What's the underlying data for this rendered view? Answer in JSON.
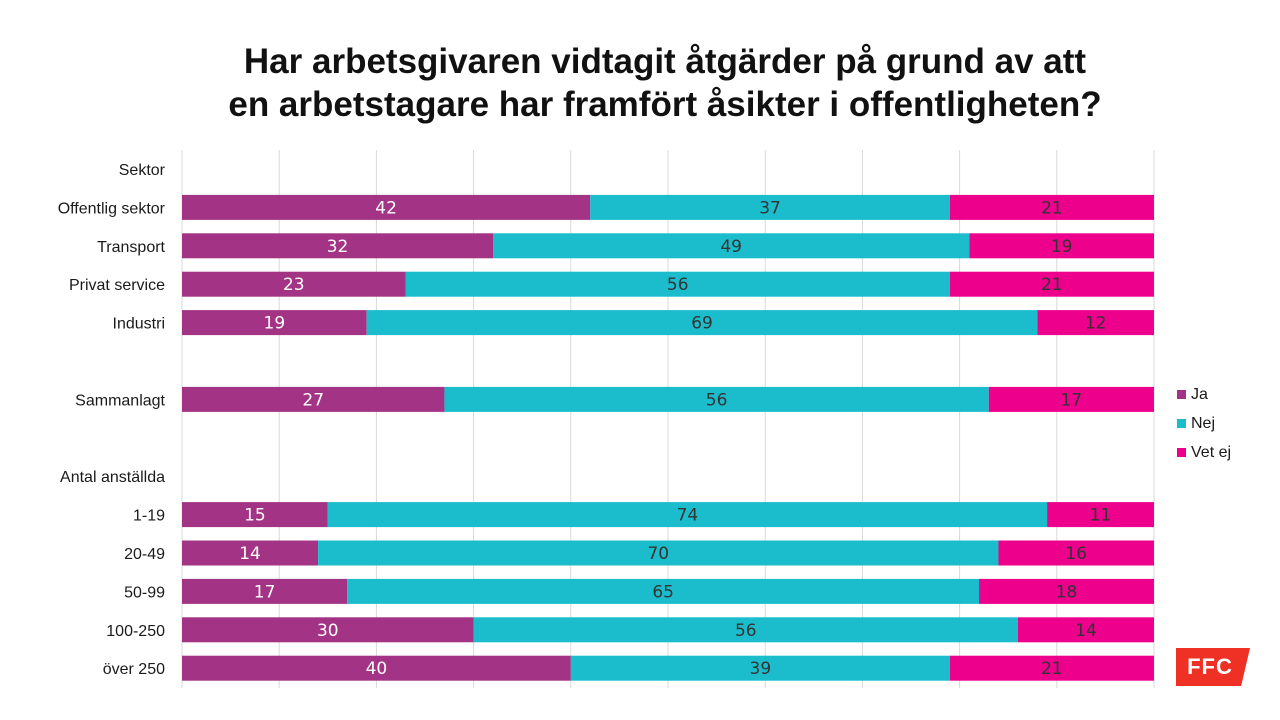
{
  "chart_data": {
    "type": "bar",
    "orientation": "horizontal",
    "stacked": true,
    "title": [
      "Har arbetsgivaren vidtagit åtgärder på grund av att",
      "en arbetstagare har framfört åsikter i offentligheten?"
    ],
    "xlim": [
      0,
      100
    ],
    "grid": true,
    "legend_position": "right",
    "rows": [
      {
        "label": "Sektor",
        "header": true
      },
      {
        "label": "Offentlig sektor",
        "values": [
          42,
          37,
          21
        ]
      },
      {
        "label": "Transport",
        "values": [
          32,
          49,
          19
        ]
      },
      {
        "label": "Privat service",
        "values": [
          23,
          56,
          21
        ]
      },
      {
        "label": "Industri",
        "values": [
          19,
          69,
          12
        ]
      },
      {
        "label": "",
        "spacer": true
      },
      {
        "label": "Sammanlagt",
        "values": [
          27,
          56,
          17
        ]
      },
      {
        "label": "",
        "spacer": true
      },
      {
        "label": "Antal anställda",
        "header": true
      },
      {
        "label": "1-19",
        "values": [
          15,
          74,
          11
        ]
      },
      {
        "label": "20-49",
        "values": [
          14,
          70,
          16
        ]
      },
      {
        "label": "50-99",
        "values": [
          17,
          65,
          18
        ]
      },
      {
        "label": "100-250",
        "values": [
          30,
          56,
          14
        ]
      },
      {
        "label": "över 250",
        "values": [
          40,
          39,
          21
        ]
      }
    ],
    "series": [
      {
        "name": "Ja",
        "color": "#a33485",
        "label_color": "#ffffff"
      },
      {
        "name": "Nej",
        "color": "#1bbdcc",
        "label_color": "#333333"
      },
      {
        "name": "Vet ej",
        "color": "#ec008c",
        "label_color": "#333333"
      }
    ]
  },
  "logo": {
    "text": "FFC",
    "color": "#ee3124"
  }
}
